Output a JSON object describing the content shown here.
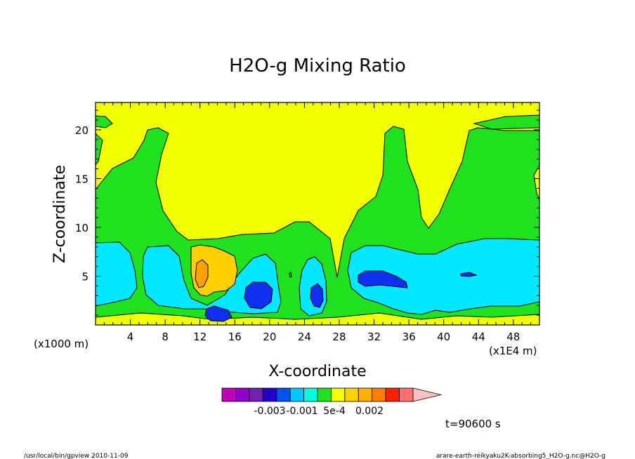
{
  "chart_data": {
    "type": "contour",
    "title": "H2O-g Mixing Ratio",
    "xlabel": "X-coordinate",
    "ylabel": "Z-coordinate",
    "x_unit_left": "(x1000 m)",
    "x_unit_right": "(x1E4 m)",
    "x_ticks": [
      "4",
      "8",
      "12",
      "16",
      "20",
      "24",
      "28",
      "32",
      "36",
      "40",
      "44",
      "48"
    ],
    "y_ticks": [
      "5",
      "10",
      "15",
      "20"
    ],
    "xlim": [
      0,
      51
    ],
    "ylim": [
      0,
      22.8
    ],
    "colorbar": {
      "labels": [
        "-0.003",
        "-0.001",
        "5e-4",
        "0.002"
      ],
      "colors": [
        "#c000b8",
        "#9000c8",
        "#7020b0",
        "#2000c8",
        "#0050f0",
        "#00c8ff",
        "#00ffe0",
        "#20e020",
        "#f0ff00",
        "#ffd000",
        "#ffb000",
        "#ff8000",
        "#ff2000",
        "#ff7070",
        "#ffc0c0"
      ]
    },
    "time_label": "t=90600 s"
  },
  "footer": {
    "left": "/usr/local/bin/gpview  2010-11-09",
    "right": "arare-earth-reikyaku2K-absorbing5_H2O-g.nc@H2O-g"
  },
  "colors": {
    "yellow": "#f0ff00",
    "green": "#20e020",
    "cyan": "#00e8ff",
    "blue": "#1030f0",
    "gold": "#ffd000",
    "orange": "#ffa000",
    "red": "#ff2000"
  }
}
